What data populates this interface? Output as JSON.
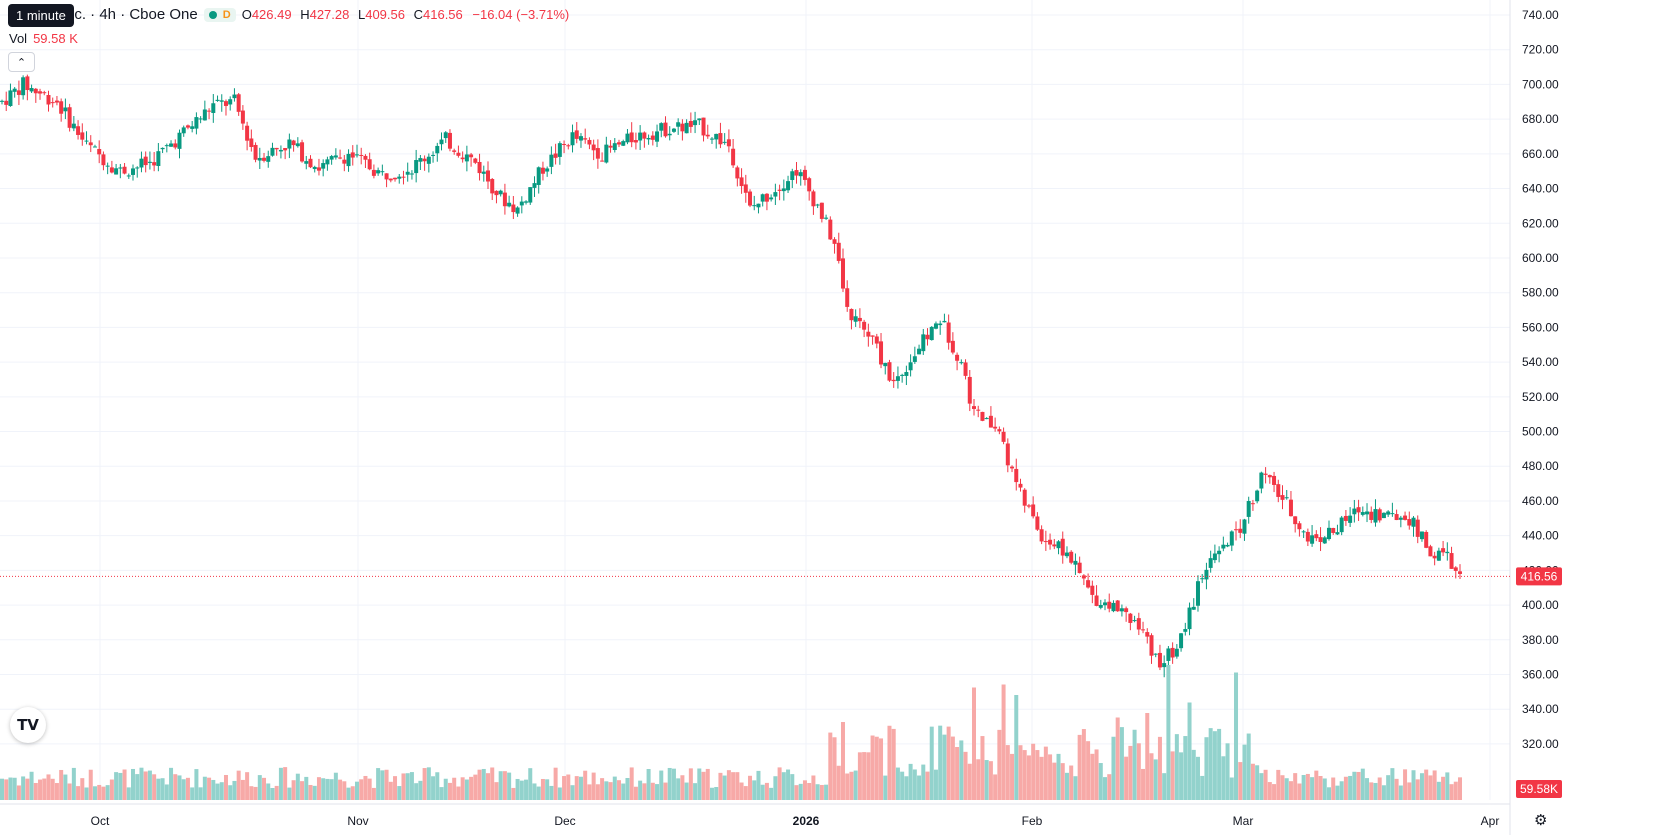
{
  "header": {
    "symbol": "nc. · 4h · Cboe One",
    "timeframe_chip": "D",
    "tooltip": "1 minute",
    "ohlc": {
      "o_label": "O",
      "o": "426.49",
      "h_label": "H",
      "h": "427.28",
      "l_label": "L",
      "l": "409.56",
      "c_label": "C",
      "c": "416.56",
      "change": "−16.04 (−3.71%)"
    },
    "volume_label": "Vol",
    "volume_value": "59.58 K",
    "collapse_icon": "chevron-up-icon",
    "logo_text": "TV"
  },
  "colors": {
    "up": "#089981",
    "down": "#f23645",
    "vol_up": "#92d2cc",
    "vol_down": "#f7a9a7",
    "grid": "#f0f3fa",
    "axis_text": "#131722",
    "price_line": "#f23645"
  },
  "chart_data": {
    "type": "candlestick",
    "ylim": [
      320,
      750
    ],
    "y_ticks": [
      "740.00",
      "720.00",
      "700.00",
      "680.00",
      "660.00",
      "640.00",
      "620.00",
      "600.00",
      "580.00",
      "560.00",
      "540.00",
      "520.00",
      "500.00",
      "480.00",
      "460.00",
      "440.00",
      "420.00",
      "400.00",
      "380.00",
      "360.00",
      "340.00",
      "320.00"
    ],
    "x_ticks": [
      "Oct",
      "Nov",
      "Dec",
      "2026",
      "Feb",
      "Mar",
      "Apr"
    ],
    "last_price_label": "416.56",
    "last_volume_label": "59.58K",
    "trend_points": [
      [
        0,
        690
      ],
      [
        5,
        700
      ],
      [
        13,
        690
      ],
      [
        20,
        665
      ],
      [
        28,
        650
      ],
      [
        35,
        655
      ],
      [
        42,
        670
      ],
      [
        50,
        688
      ],
      [
        55,
        690
      ],
      [
        60,
        658
      ],
      [
        68,
        666
      ],
      [
        75,
        652
      ],
      [
        82,
        660
      ],
      [
        90,
        648
      ],
      [
        97,
        652
      ],
      [
        105,
        668
      ],
      [
        112,
        655
      ],
      [
        118,
        635
      ],
      [
        122,
        628
      ],
      [
        128,
        652
      ],
      [
        135,
        670
      ],
      [
        142,
        660
      ],
      [
        150,
        670
      ],
      [
        158,
        675
      ],
      [
        165,
        676
      ],
      [
        172,
        665
      ],
      [
        177,
        628
      ],
      [
        183,
        640
      ],
      [
        188,
        651
      ],
      [
        193,
        630
      ],
      [
        197,
        608
      ],
      [
        200,
        570
      ],
      [
        206,
        552
      ],
      [
        211,
        528
      ],
      [
        216,
        545
      ],
      [
        222,
        565
      ],
      [
        227,
        540
      ],
      [
        230,
        510
      ],
      [
        236,
        500
      ],
      [
        240,
        468
      ],
      [
        246,
        440
      ],
      [
        252,
        430
      ],
      [
        258,
        405
      ],
      [
        264,
        398
      ],
      [
        270,
        383
      ],
      [
        274,
        365
      ],
      [
        279,
        380
      ],
      [
        284,
        418
      ],
      [
        289,
        432
      ],
      [
        293,
        445
      ],
      [
        298,
        475
      ],
      [
        303,
        462
      ],
      [
        309,
        438
      ],
      [
        315,
        442
      ],
      [
        321,
        455
      ],
      [
        327,
        452
      ],
      [
        333,
        450
      ],
      [
        338,
        430
      ],
      [
        342,
        428
      ],
      [
        345,
        415
      ]
    ],
    "volume_spikes": [
      {
        "index": 199,
        "value": 52,
        "up": false
      },
      {
        "index": 230,
        "value": 75,
        "up": false
      },
      {
        "index": 237,
        "value": 77,
        "up": false
      },
      {
        "index": 240,
        "value": 70,
        "up": true
      },
      {
        "index": 276,
        "value": 90,
        "up": true
      },
      {
        "index": 281,
        "value": 65,
        "up": true
      },
      {
        "index": 292,
        "value": 85,
        "up": true
      },
      {
        "index": 264,
        "value": 55,
        "up": false
      },
      {
        "index": 271,
        "value": 58,
        "up": false
      }
    ]
  }
}
